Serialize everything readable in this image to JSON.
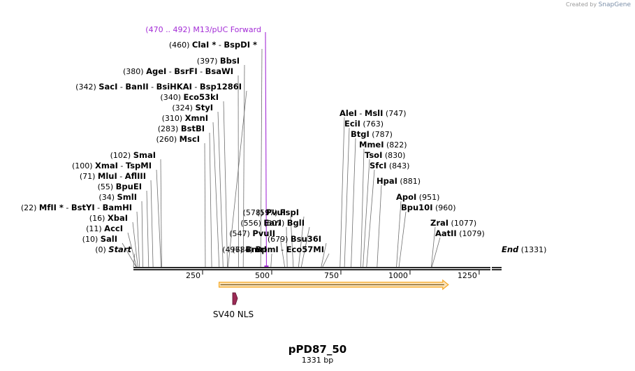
{
  "credit": {
    "text": "Created by",
    "brand": "SnapGene"
  },
  "plasmid": {
    "name": "pPD87_50",
    "length_text": "1331 bp",
    "length_bp": 1331
  },
  "axis": {
    "ticks": [
      250,
      500,
      750,
      1000,
      1250
    ]
  },
  "colors": {
    "primer": "#a32cd6",
    "feature_arrow": "#f6a61e",
    "nls": "#9b2a55",
    "line": "#555555"
  },
  "primer": {
    "range": "(470 .. 492)",
    "name": "M13/pUC Forward",
    "position_bp": 481
  },
  "features": [
    {
      "name": "",
      "type": "orange-arrow",
      "start_bp": 355,
      "end_bp": 1131
    },
    {
      "name": "SV40 NLS",
      "type": "nls-box",
      "start_bp": 355,
      "end_bp": 376
    }
  ],
  "sites": [
    {
      "pos": "(0)",
      "names": [
        "Start"
      ],
      "italic": true,
      "bp": 0
    },
    {
      "pos": "(10)",
      "names": [
        "SalI"
      ],
      "bp": 10
    },
    {
      "pos": "(11)",
      "names": [
        "AccI"
      ],
      "bp": 11
    },
    {
      "pos": "(16)",
      "names": [
        "XbaI"
      ],
      "bp": 16
    },
    {
      "pos": "(22)",
      "names": [
        "MfII *",
        "BstYI",
        "BamHI"
      ],
      "bp": 22
    },
    {
      "pos": "(34)",
      "names": [
        "SmlI"
      ],
      "bp": 34
    },
    {
      "pos": "(55)",
      "names": [
        "BpuEI"
      ],
      "bp": 55
    },
    {
      "pos": "(71)",
      "names": [
        "MluI",
        "AflIII"
      ],
      "bp": 71
    },
    {
      "pos": "(100)",
      "names": [
        "XmaI",
        "TspMI"
      ],
      "bp": 100
    },
    {
      "pos": "(102)",
      "names": [
        "SmaI"
      ],
      "bp": 102
    },
    {
      "pos": "(260)",
      "names": [
        "MscI"
      ],
      "bp": 260
    },
    {
      "pos": "(283)",
      "names": [
        "BstBI"
      ],
      "bp": 283
    },
    {
      "pos": "(310)",
      "names": [
        "XmnI"
      ],
      "bp": 310
    },
    {
      "pos": "(324)",
      "names": [
        "StyI"
      ],
      "bp": 324
    },
    {
      "pos": "(340)",
      "names": [
        "Eco53kI"
      ],
      "bp": 340
    },
    {
      "pos": "(342)",
      "names": [
        "SacI",
        "BanII",
        "BsiHKAI",
        "Bsp1286I"
      ],
      "bp": 342
    },
    {
      "pos": "(380)",
      "names": [
        "AgeI",
        "BsrFI",
        "BsaWI"
      ],
      "bp": 380
    },
    {
      "pos": "(397)",
      "names": [
        "BbsI"
      ],
      "bp": 397
    },
    {
      "pos": "(460)",
      "names": [
        "ClaI *",
        "BspDI *"
      ],
      "bp": 460
    },
    {
      "pos": "(497)",
      "names": [
        "BmrI"
      ],
      "bp": 497
    },
    {
      "pos": "(547)",
      "names": [
        "PvuII"
      ],
      "bp": 547
    },
    {
      "pos": "(556)",
      "names": [
        "EarI"
      ],
      "bp": 556
    },
    {
      "pos": "(578)",
      "names": [
        "PvuI"
      ],
      "bp": 578
    },
    {
      "pos": "(597)",
      "names": [
        "FspI"
      ],
      "bp": 597
    },
    {
      "pos": "(607)",
      "names": [
        "BglI"
      ],
      "bp": 607
    },
    {
      "pos": "(679)",
      "names": [
        "Bsu36I"
      ],
      "bp": 679
    },
    {
      "pos": "(684)",
      "names": [
        "BpmI",
        "Eco57MI"
      ],
      "bp": 684
    },
    {
      "pos": "(747)",
      "names": [
        "AleI",
        "MslI"
      ],
      "bp": 747
    },
    {
      "pos": "(763)",
      "names": [
        "EciI"
      ],
      "bp": 763
    },
    {
      "pos": "(787)",
      "names": [
        "BtgI"
      ],
      "bp": 787
    },
    {
      "pos": "(822)",
      "names": [
        "MmeI"
      ],
      "bp": 822
    },
    {
      "pos": "(830)",
      "names": [
        "TsoI"
      ],
      "bp": 830
    },
    {
      "pos": "(843)",
      "names": [
        "SfcI"
      ],
      "bp": 843
    },
    {
      "pos": "(881)",
      "names": [
        "HpaI"
      ],
      "bp": 881
    },
    {
      "pos": "(951)",
      "names": [
        "ApoI"
      ],
      "bp": 951
    },
    {
      "pos": "(960)",
      "names": [
        "Bpu10I"
      ],
      "bp": 960
    },
    {
      "pos": "(1077)",
      "names": [
        "ZraI"
      ],
      "bp": 1077
    },
    {
      "pos": "(1079)",
      "names": [
        "AatII"
      ],
      "bp": 1079
    },
    {
      "pos": "(1331)",
      "names": [
        "End"
      ],
      "italic": true,
      "bp": 1331
    }
  ]
}
